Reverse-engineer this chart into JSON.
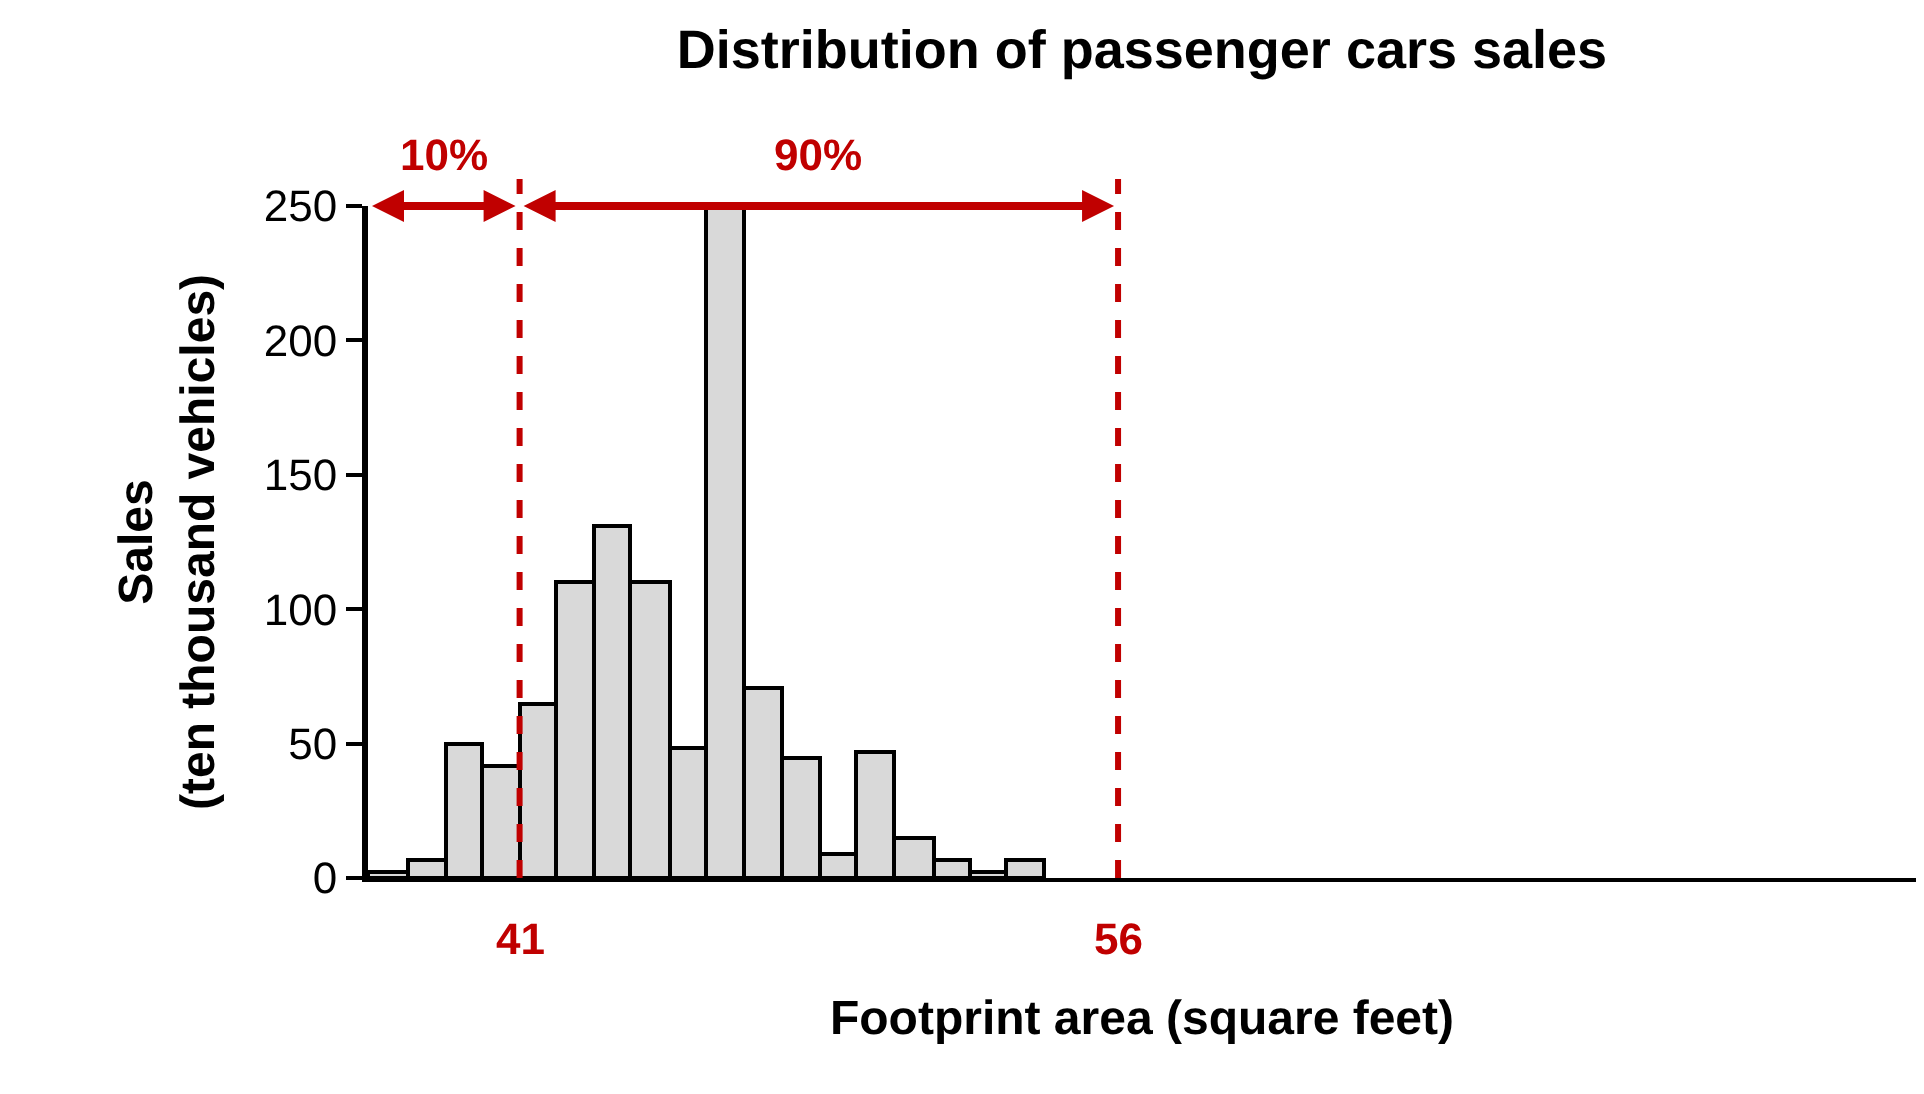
{
  "chart_data": {
    "type": "histogram",
    "title": "Distribution of passenger cars sales",
    "xlabel": "Footprint area (square feet)",
    "ylabel": "Sales\n(ten thousand vehicles)",
    "bins": [
      37.2,
      38.2,
      39.16,
      40.07,
      41,
      41.9,
      42.84,
      43.79,
      44.75,
      45.69,
      46.64,
      47.56,
      48.53,
      49.43,
      50.4,
      51.37,
      52.27,
      53.19,
      54.16
    ],
    "values": [
      2,
      7,
      50,
      42,
      65,
      110,
      131,
      110,
      48,
      250,
      71,
      45,
      9,
      47,
      15,
      7,
      2,
      7
    ],
    "color": "#d9d9d9",
    "xlim": [
      37.2,
      76
    ],
    "ylim": [
      0,
      250
    ],
    "yticks": [
      0,
      50,
      100,
      150,
      200,
      250
    ],
    "tick_labels": "y",
    "grid": false,
    "ref_lines": [
      {
        "axis": "x",
        "value": 41,
        "label": "41",
        "color": "#c00000",
        "line_style": "dashed"
      },
      {
        "axis": "x",
        "value": 56,
        "label": "56",
        "color": "#c00000",
        "line_style": "dashed"
      }
    ],
    "annotations": [
      "10%",
      "90%"
    ]
  }
}
